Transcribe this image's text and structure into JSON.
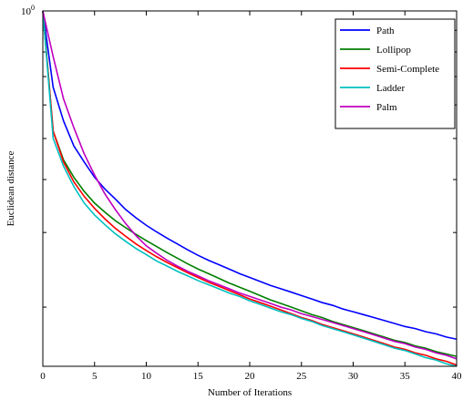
{
  "chart_data": {
    "type": "line",
    "title": "",
    "xlabel": "Number of Iterations",
    "ylabel": "Euclidean distance",
    "xlim": [
      0,
      40
    ],
    "x_ticks": [
      0,
      5,
      10,
      15,
      20,
      25,
      30,
      35,
      40
    ],
    "y_scale": "log",
    "y_top_label": "10",
    "y_top_exponent": "0",
    "grid": false,
    "legend_position": "top-right",
    "x": [
      0,
      1,
      2,
      3,
      4,
      5,
      6,
      7,
      8,
      9,
      10,
      11,
      12,
      13,
      14,
      15,
      16,
      17,
      18,
      19,
      20,
      21,
      22,
      23,
      24,
      25,
      26,
      27,
      28,
      29,
      30,
      31,
      32,
      33,
      34,
      35,
      36,
      37,
      38,
      39,
      40
    ],
    "series": [
      {
        "name": "Path",
        "color": "#0000ff",
        "values": [
          1.0,
          0.66,
          0.55,
          0.48,
          0.44,
          0.405,
          0.38,
          0.36,
          0.34,
          0.325,
          0.312,
          0.301,
          0.291,
          0.282,
          0.273,
          0.265,
          0.258,
          0.252,
          0.246,
          0.24,
          0.235,
          0.23,
          0.225,
          0.221,
          0.217,
          0.213,
          0.209,
          0.205,
          0.202,
          0.198,
          0.195,
          0.192,
          0.189,
          0.186,
          0.183,
          0.18,
          0.178,
          0.175,
          0.173,
          0.17,
          0.168
        ]
      },
      {
        "name": "Lollipop",
        "color": "#007f00",
        "values": [
          1.0,
          0.52,
          0.445,
          0.405,
          0.375,
          0.352,
          0.335,
          0.32,
          0.308,
          0.297,
          0.287,
          0.278,
          0.269,
          0.261,
          0.253,
          0.246,
          0.24,
          0.234,
          0.228,
          0.223,
          0.218,
          0.213,
          0.208,
          0.204,
          0.2,
          0.196,
          0.192,
          0.189,
          0.185,
          0.182,
          0.179,
          0.176,
          0.173,
          0.17,
          0.167,
          0.165,
          0.162,
          0.16,
          0.157,
          0.155,
          0.153
        ]
      },
      {
        "name": "Semi-Complete",
        "color": "#ff0000",
        "values": [
          1.0,
          0.52,
          0.44,
          0.395,
          0.365,
          0.342,
          0.323,
          0.307,
          0.294,
          0.282,
          0.272,
          0.263,
          0.255,
          0.248,
          0.241,
          0.235,
          0.229,
          0.224,
          0.219,
          0.214,
          0.209,
          0.205,
          0.201,
          0.197,
          0.193,
          0.189,
          0.186,
          0.182,
          0.179,
          0.176,
          0.173,
          0.17,
          0.167,
          0.164,
          0.161,
          0.159,
          0.156,
          0.154,
          0.151,
          0.149,
          0.146
        ]
      },
      {
        "name": "Ladder",
        "color": "#00bfbf",
        "values": [
          1.0,
          0.5,
          0.43,
          0.385,
          0.352,
          0.33,
          0.313,
          0.298,
          0.286,
          0.275,
          0.266,
          0.257,
          0.25,
          0.243,
          0.237,
          0.231,
          0.226,
          0.221,
          0.216,
          0.212,
          0.207,
          0.203,
          0.199,
          0.195,
          0.192,
          0.188,
          0.185,
          0.181,
          0.178,
          0.175,
          0.172,
          0.169,
          0.166,
          0.163,
          0.16,
          0.158,
          0.155,
          0.152,
          0.15,
          0.147,
          0.145
        ]
      },
      {
        "name": "Palm",
        "color": "#bf00bf",
        "values": [
          1.0,
          0.78,
          0.62,
          0.53,
          0.46,
          0.41,
          0.37,
          0.34,
          0.315,
          0.295,
          0.279,
          0.268,
          0.258,
          0.25,
          0.243,
          0.237,
          0.231,
          0.226,
          0.221,
          0.216,
          0.212,
          0.208,
          0.204,
          0.2,
          0.197,
          0.193,
          0.19,
          0.187,
          0.184,
          0.181,
          0.178,
          0.175,
          0.172,
          0.169,
          0.166,
          0.164,
          0.161,
          0.159,
          0.156,
          0.154,
          0.151
        ]
      }
    ]
  }
}
